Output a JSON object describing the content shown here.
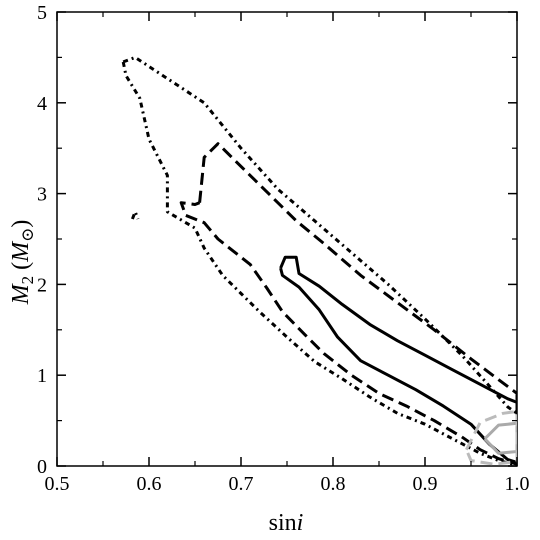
{
  "chart_data": {
    "type": "contour",
    "xlabel": {
      "main": "sin",
      "italic": "i"
    },
    "ylabel": {
      "symbol": "M",
      "sub": "2",
      "open": " (",
      "unit": "M",
      "unit_sub": "⊙",
      "close": ")"
    },
    "xlim": [
      0.5,
      1.0
    ],
    "ylim": [
      0,
      5
    ],
    "xticks": [
      0.5,
      0.6,
      0.7,
      0.8,
      0.9,
      1.0
    ],
    "xtick_labels": [
      "0.5",
      "0.6",
      "0.7",
      "0.8",
      "0.9",
      "1.0"
    ],
    "yticks": [
      0,
      1,
      2,
      3,
      4,
      5
    ],
    "ytick_labels": [
      "0",
      "1",
      "2",
      "3",
      "4",
      "5"
    ],
    "grid": false,
    "legend": false,
    "contours": [
      {
        "level": "innermost",
        "style": "solid",
        "color": "#000000",
        "points": [
          [
            0.743,
            2.18
          ],
          [
            0.748,
            2.3
          ],
          [
            0.76,
            2.3
          ],
          [
            0.763,
            2.12
          ],
          [
            0.785,
            1.98
          ],
          [
            0.81,
            1.78
          ],
          [
            0.84,
            1.56
          ],
          [
            0.87,
            1.38
          ],
          [
            0.9,
            1.22
          ],
          [
            0.93,
            1.06
          ],
          [
            0.96,
            0.9
          ],
          [
            0.99,
            0.74
          ],
          [
            1.0,
            0.7
          ],
          [
            1.0,
            0.04
          ],
          [
            0.99,
            0.07
          ],
          [
            0.97,
            0.24
          ],
          [
            0.95,
            0.46
          ],
          [
            0.92,
            0.66
          ],
          [
            0.89,
            0.84
          ],
          [
            0.86,
            1.0
          ],
          [
            0.83,
            1.16
          ],
          [
            0.805,
            1.42
          ],
          [
            0.785,
            1.72
          ],
          [
            0.763,
            1.97
          ],
          [
            0.745,
            2.1
          ],
          [
            0.743,
            2.18
          ]
        ]
      },
      {
        "level": "middle",
        "style": "dashed",
        "color": "#000000",
        "points": [
          [
            0.655,
            2.9
          ],
          [
            0.66,
            3.4
          ],
          [
            0.675,
            3.55
          ],
          [
            0.7,
            3.3
          ],
          [
            0.73,
            3.0
          ],
          [
            0.76,
            2.7
          ],
          [
            0.79,
            2.45
          ],
          [
            0.83,
            2.1
          ],
          [
            0.87,
            1.8
          ],
          [
            0.91,
            1.5
          ],
          [
            0.95,
            1.18
          ],
          [
            0.98,
            0.95
          ],
          [
            1.0,
            0.8
          ],
          [
            1.0,
            0.02
          ],
          [
            0.98,
            0.08
          ],
          [
            0.96,
            0.18
          ],
          [
            0.94,
            0.32
          ],
          [
            0.91,
            0.5
          ],
          [
            0.88,
            0.66
          ],
          [
            0.85,
            0.8
          ],
          [
            0.82,
            1.0
          ],
          [
            0.79,
            1.24
          ],
          [
            0.77,
            1.44
          ],
          [
            0.745,
            1.7
          ],
          [
            0.728,
            1.96
          ],
          [
            0.71,
            2.22
          ],
          [
            0.69,
            2.38
          ],
          [
            0.675,
            2.5
          ],
          [
            0.66,
            2.68
          ],
          [
            0.64,
            2.76
          ],
          [
            0.635,
            2.9
          ],
          [
            0.65,
            2.88
          ],
          [
            0.655,
            2.9
          ]
        ]
      },
      {
        "level": "outer",
        "style": "dashdot",
        "color": "#000000",
        "points": [
          [
            0.572,
            4.45
          ],
          [
            0.585,
            4.5
          ],
          [
            0.6,
            4.4
          ],
          [
            0.63,
            4.2
          ],
          [
            0.66,
            4.0
          ],
          [
            0.7,
            3.5
          ],
          [
            0.74,
            3.05
          ],
          [
            0.78,
            2.7
          ],
          [
            0.82,
            2.35
          ],
          [
            0.86,
            2.0
          ],
          [
            0.9,
            1.62
          ],
          [
            0.94,
            1.22
          ],
          [
            0.97,
            0.88
          ],
          [
            0.99,
            0.65
          ],
          [
            1.0,
            0.58
          ],
          [
            1.0,
            0.01
          ],
          [
            0.98,
            0.06
          ],
          [
            0.96,
            0.14
          ],
          [
            0.93,
            0.3
          ],
          [
            0.9,
            0.46
          ],
          [
            0.87,
            0.58
          ],
          [
            0.84,
            0.76
          ],
          [
            0.81,
            0.96
          ],
          [
            0.78,
            1.15
          ],
          [
            0.75,
            1.42
          ],
          [
            0.72,
            1.7
          ],
          [
            0.7,
            1.9
          ],
          [
            0.68,
            2.1
          ],
          [
            0.66,
            2.4
          ],
          [
            0.65,
            2.62
          ],
          [
            0.62,
            2.8
          ],
          [
            0.62,
            3.2
          ],
          [
            0.6,
            3.6
          ],
          [
            0.59,
            4.05
          ],
          [
            0.575,
            4.3
          ],
          [
            0.572,
            4.45
          ]
        ]
      },
      {
        "level": "isolated-outer",
        "style": "dashdot",
        "color": "#000000",
        "points": [
          [
            0.582,
            2.72
          ],
          [
            0.585,
            2.8
          ],
          [
            0.588,
            2.72
          ]
        ]
      },
      {
        "level": "secondary-solid",
        "style": "solid",
        "color": "#aaaaaa",
        "points": [
          [
            0.965,
            0.3
          ],
          [
            0.98,
            0.45
          ],
          [
            1.0,
            0.47
          ],
          [
            1.0,
            0.16
          ],
          [
            0.98,
            0.14
          ],
          [
            0.965,
            0.3
          ]
        ]
      },
      {
        "level": "secondary-dashed",
        "style": "dashed",
        "color": "#bbbbbb",
        "points": [
          [
            0.945,
            0.18
          ],
          [
            0.96,
            0.48
          ],
          [
            0.985,
            0.58
          ],
          [
            1.0,
            0.6
          ],
          [
            1.0,
            0.05
          ],
          [
            0.975,
            0.02
          ],
          [
            0.95,
            0.06
          ],
          [
            0.945,
            0.18
          ]
        ]
      }
    ]
  }
}
